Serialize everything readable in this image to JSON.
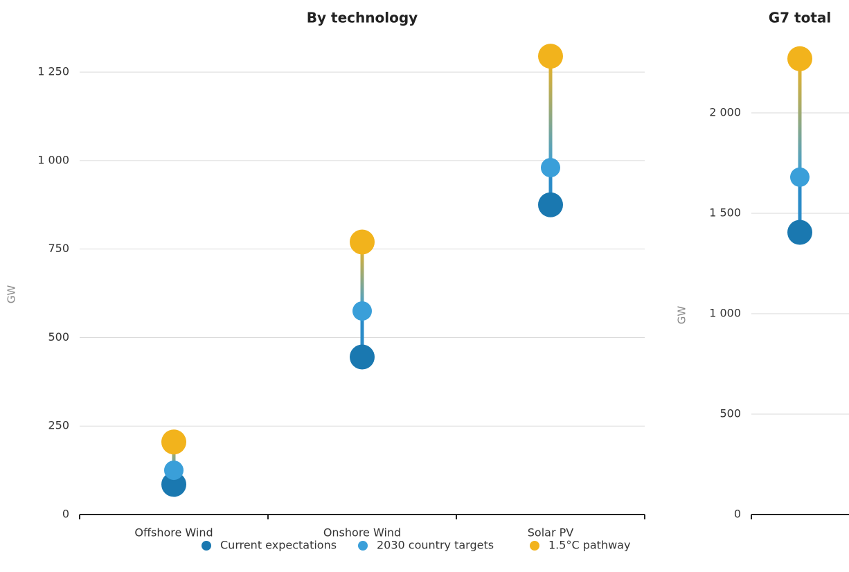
{
  "chart_data": [
    {
      "type": "dot",
      "title": "By technology",
      "y_label": "GW",
      "categories": [
        "Offshore Wind",
        "Onshore Wind",
        "Solar PV"
      ],
      "series": [
        {
          "name": "Current expectations",
          "color": "#1a78b0",
          "values": [
            85,
            445,
            875
          ]
        },
        {
          "name": "2030 country targets",
          "color": "#3a9fd9",
          "values": [
            125,
            575,
            980
          ]
        },
        {
          "name": "1.5°C pathway",
          "color": "#f2b31c",
          "values": [
            205,
            770,
            1295
          ]
        }
      ],
      "ylim": [
        0,
        1350
      ],
      "yticks": [
        0,
        250,
        500,
        750,
        {
          "value": 1000,
          "label": "1 000"
        },
        {
          "value": 1250,
          "label": "1 250"
        }
      ],
      "grid": true
    },
    {
      "type": "dot",
      "title": "G7 total",
      "y_label": "GW",
      "categories": [
        null
      ],
      "series": [
        {
          "name": "Current expectations",
          "color": "#1a78b0",
          "values": [
            1405
          ]
        },
        {
          "name": "2030 country targets",
          "color": "#3a9fd9",
          "values": [
            1680
          ]
        },
        {
          "name": "1.5°C pathway",
          "color": "#f2b31c",
          "values": [
            2270
          ]
        }
      ],
      "ylim": [
        0,
        2400
      ],
      "yticks": [
        0,
        500,
        {
          "value": 1000,
          "label": "1 000"
        },
        {
          "value": 1500,
          "label": "1 500"
        },
        {
          "value": 2000,
          "label": "2 000"
        }
      ],
      "grid": true
    }
  ]
}
